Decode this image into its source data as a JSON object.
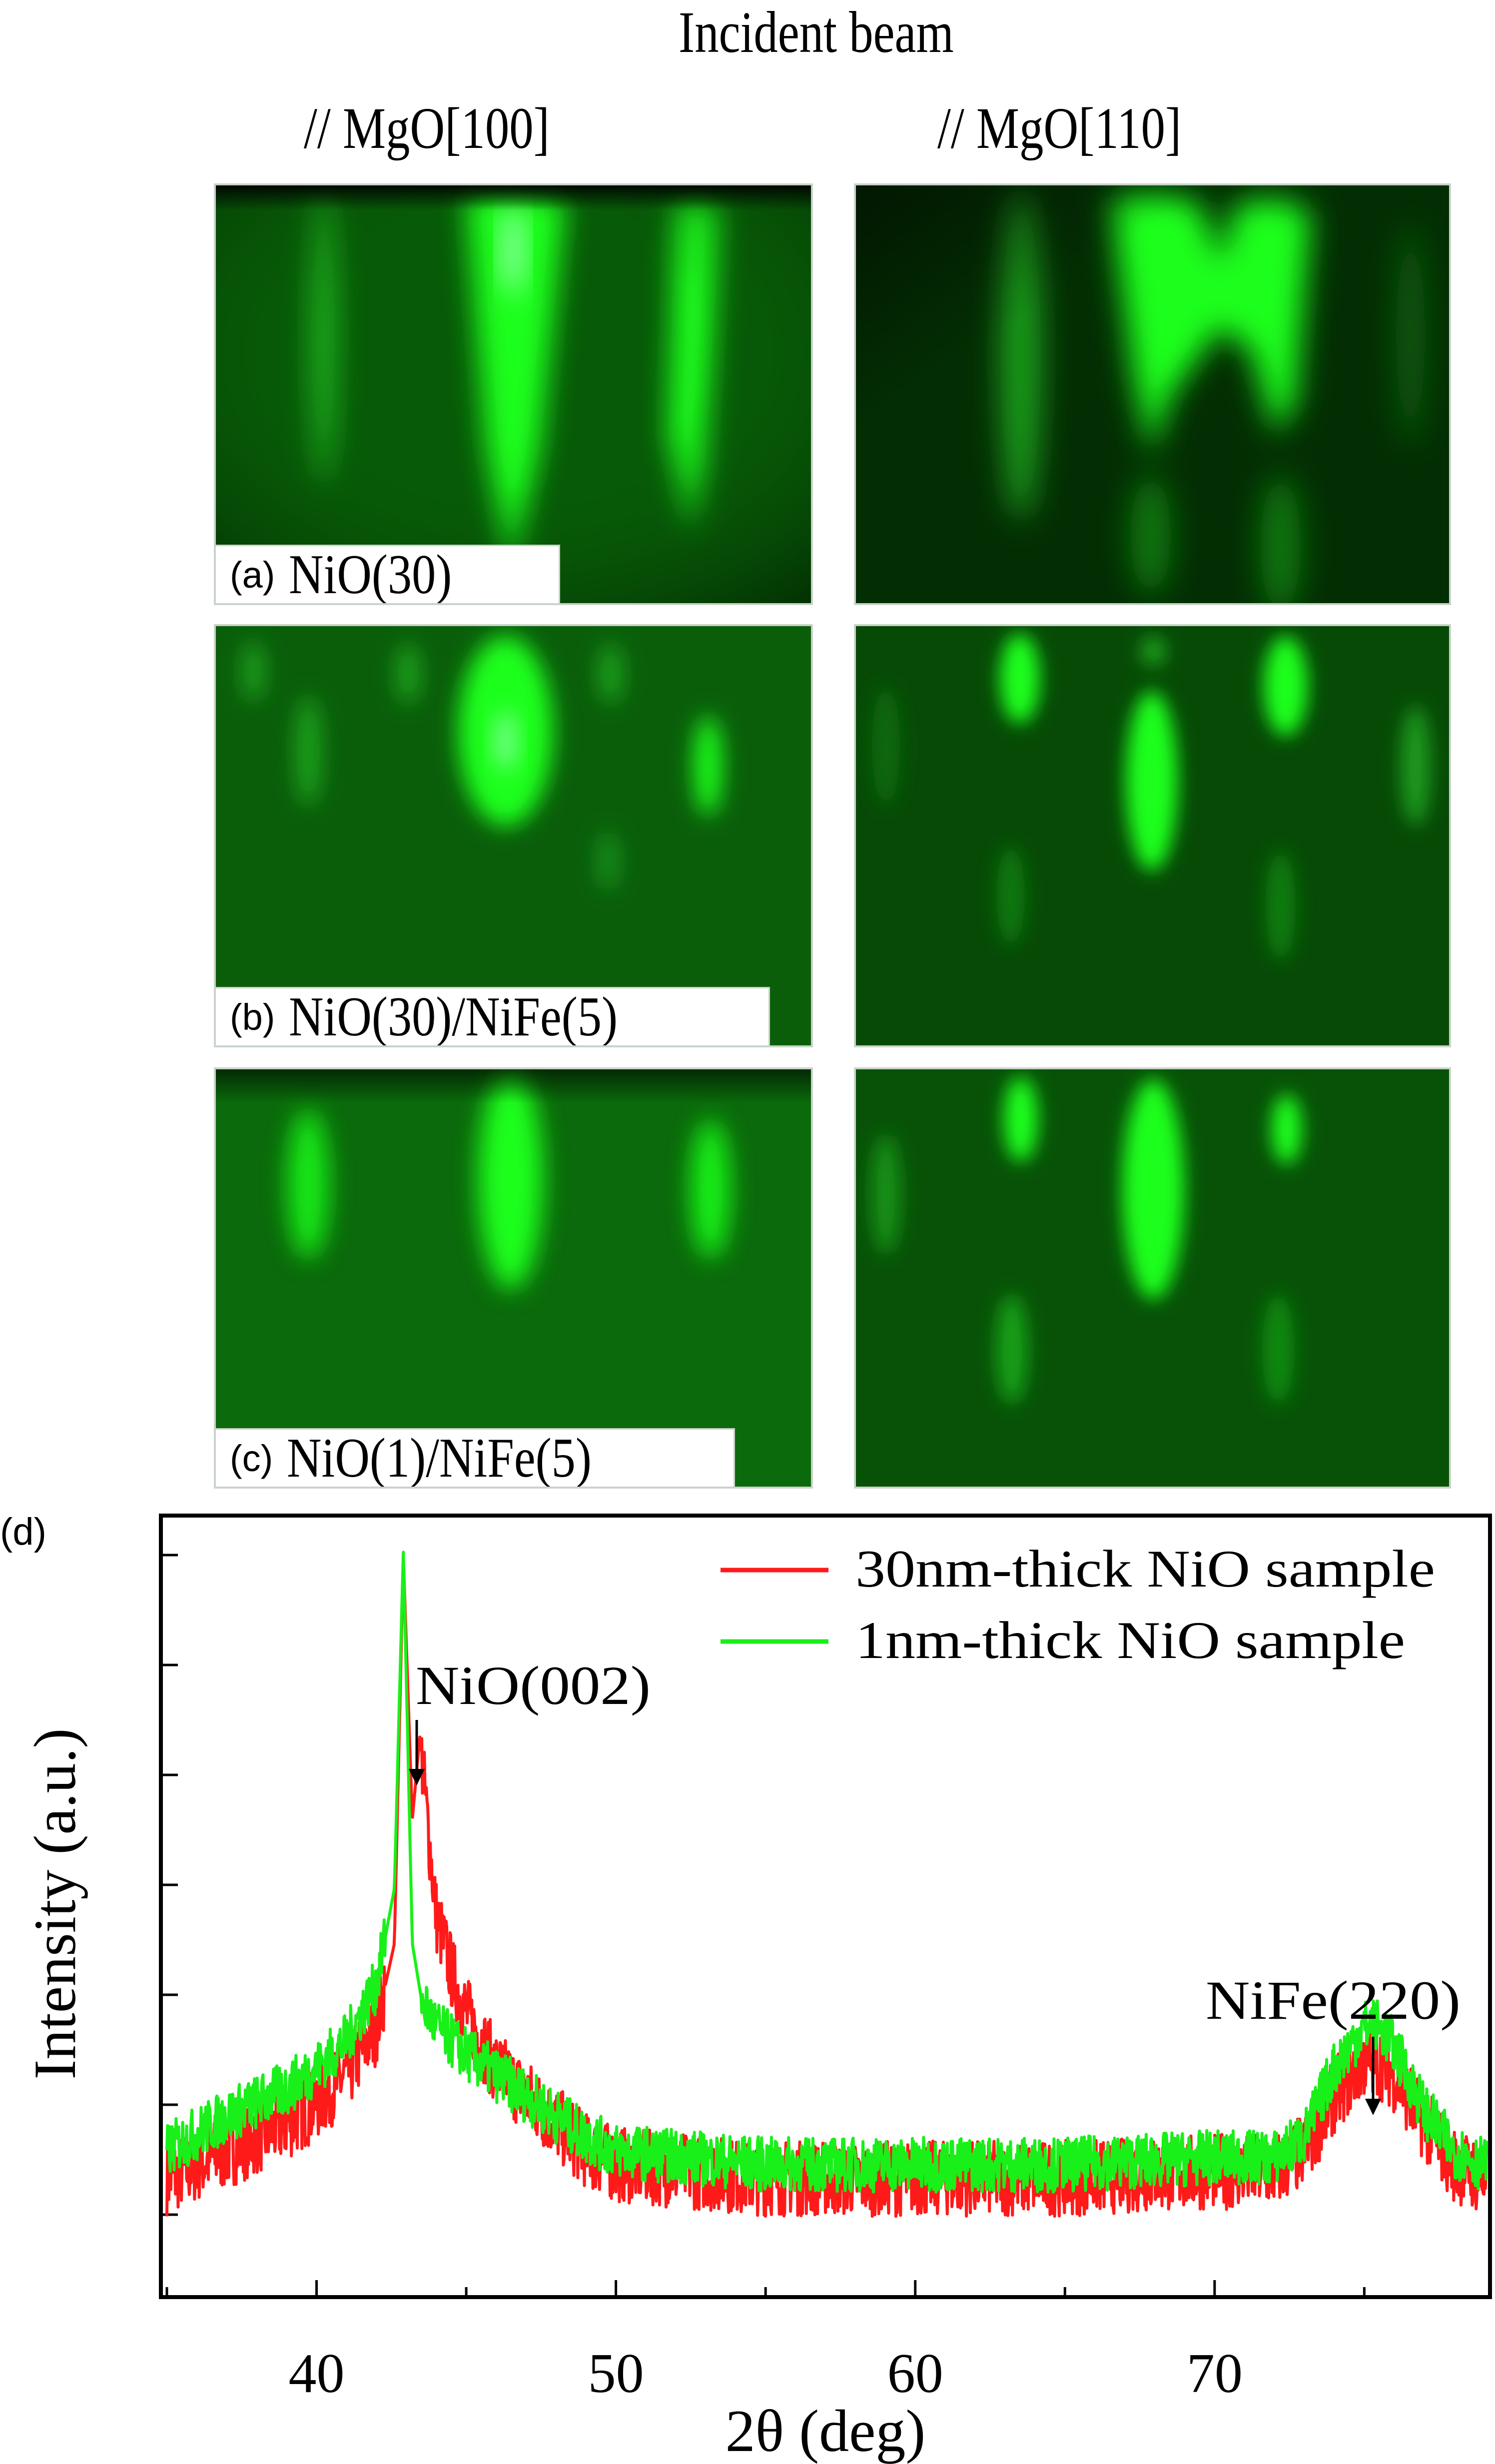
{
  "figure": {
    "header": {
      "title": "Incident beam",
      "col_left": "// MgO[100]",
      "col_right": "// MgO[110]"
    },
    "panels": [
      {
        "tag": "(a)",
        "label": "NiO(30)"
      },
      {
        "tag": "(b)",
        "label": "NiO(30)/NiFe(5)"
      },
      {
        "tag": "(c)",
        "label": "NiO(1)/NiFe(5)"
      }
    ],
    "colors": {
      "rheed_bg": "#033a03",
      "rheed_spot": "#1aff1a",
      "series_30nm": "#ff1a1a",
      "series_1nm": "#19f019"
    }
  },
  "chart_panel_tag": "(d)",
  "chart_data": {
    "type": "line",
    "title": "",
    "xlabel": "2θ (deg)",
    "ylabel": "Intensity (a.u.)",
    "xlim": [
      34.8,
      79.2
    ],
    "ylim": [
      0,
      1
    ],
    "x_ticks": [
      40,
      50,
      60,
      70
    ],
    "x_minor_ticks": [
      35,
      45,
      55,
      65,
      75
    ],
    "y_ticks_labeled": false,
    "y_tick_count": 7,
    "grid": false,
    "legend_position": "upper right",
    "legend": [
      "30nm-thick NiO sample",
      "1nm-thick NiO sample"
    ],
    "annotations": [
      {
        "text": "NiO(002)",
        "x": 43.45,
        "arrow": true
      },
      {
        "text": "NiFe(220)",
        "x": 75.2,
        "arrow": true
      }
    ],
    "series": [
      {
        "name": "30nm-thick NiO sample",
        "color": "#ff1a1a",
        "x": [
          35,
          37,
          39,
          40,
          41,
          42,
          42.6,
          42.9,
          43.2,
          43.45,
          43.7,
          44.0,
          44.5,
          45,
          46,
          47,
          48,
          49,
          50,
          55,
          60,
          65,
          70,
          72,
          73,
          74,
          75,
          75.5,
          76,
          77,
          78,
          79
        ],
        "values": [
          0.08,
          0.12,
          0.16,
          0.19,
          0.23,
          0.3,
          0.42,
          0.98,
          0.6,
          0.72,
          0.6,
          0.46,
          0.38,
          0.32,
          0.24,
          0.2,
          0.16,
          0.12,
          0.1,
          0.08,
          0.08,
          0.08,
          0.09,
          0.09,
          0.12,
          0.2,
          0.25,
          0.25,
          0.23,
          0.16,
          0.1,
          0.08
        ]
      },
      {
        "name": "1nm-thick NiO sample",
        "color": "#19f019",
        "x": [
          35,
          37,
          39,
          40,
          41,
          42,
          42.6,
          42.9,
          43.2,
          43.5,
          44.0,
          44.5,
          45,
          46,
          47,
          48,
          49,
          50,
          55,
          60,
          65,
          70,
          72,
          73,
          74,
          75,
          75.5,
          76,
          77,
          78,
          79
        ],
        "values": [
          0.12,
          0.17,
          0.21,
          0.24,
          0.28,
          0.36,
          0.5,
          0.99,
          0.42,
          0.34,
          0.3,
          0.28,
          0.26,
          0.23,
          0.2,
          0.17,
          0.14,
          0.12,
          0.1,
          0.1,
          0.1,
          0.11,
          0.11,
          0.14,
          0.24,
          0.3,
          0.3,
          0.27,
          0.18,
          0.12,
          0.1
        ]
      }
    ]
  }
}
